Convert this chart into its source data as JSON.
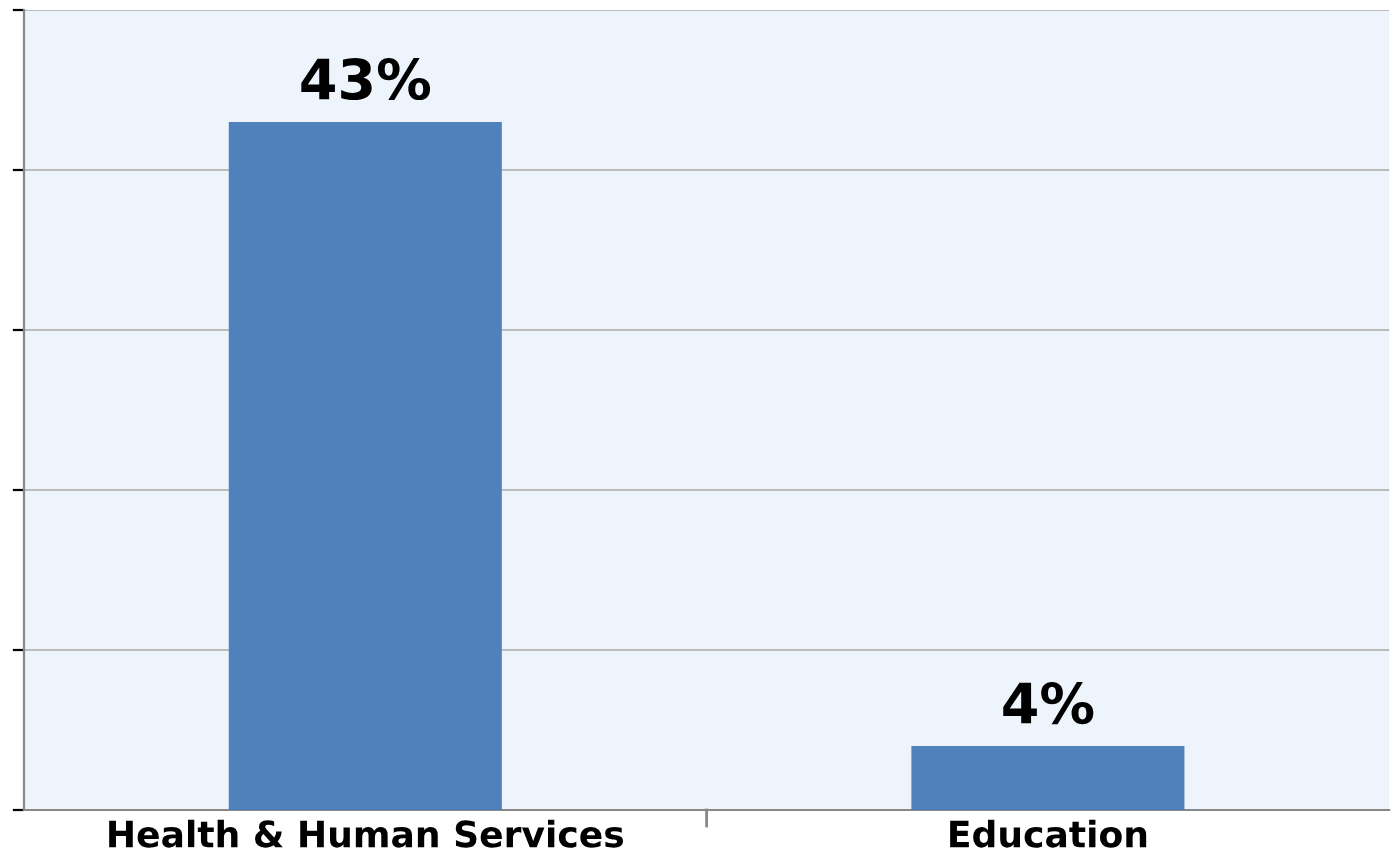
{
  "chart_data": {
    "type": "bar",
    "categories": [
      "Health & Human Services",
      "Education"
    ],
    "values": [
      43,
      4
    ],
    "color": "#4f81bd",
    "value_labels": [
      "43%",
      "4%"
    ],
    "ylim": [
      0,
      50
    ],
    "yticks": [
      {
        "value": 0,
        "label": null
      },
      {
        "value": 10,
        "label": null
      },
      {
        "value": 20,
        "label": null
      },
      {
        "value": 30,
        "label": null
      },
      {
        "value": 40,
        "label": null
      },
      {
        "value": 50,
        "label": null
      }
    ],
    "grid": "y",
    "tick_labels": "x"
  }
}
